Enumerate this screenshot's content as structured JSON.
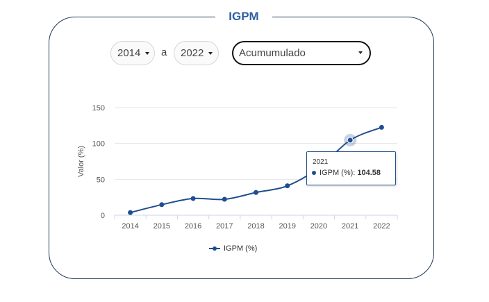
{
  "title": "IGPM",
  "controls": {
    "start_year": "2014",
    "separator": "a",
    "end_year": "2022",
    "mode": "Acumumulado"
  },
  "chart_data": {
    "type": "line",
    "x": [
      "2014",
      "2015",
      "2016",
      "2017",
      "2018",
      "2019",
      "2020",
      "2021",
      "2022"
    ],
    "series": [
      {
        "name": "IGPM (%)",
        "values": [
          3.7,
          14.7,
          23.3,
          22.2,
          31.7,
          41.0,
          66.0,
          104.58,
          122.5
        ]
      }
    ],
    "ylabel": "Valor (%)",
    "yticks": [
      0,
      50,
      100,
      150
    ],
    "ylim": [
      0,
      150
    ],
    "grid": true,
    "legend": "bottom-center",
    "colors": {
      "series": "#1f4e8f",
      "grid": "#e6e6e6",
      "title": "#2e5fa3",
      "card_border": "#1f3559"
    }
  },
  "tooltip": {
    "x": "2021",
    "series": "IGPM (%)",
    "value": "104.58"
  }
}
